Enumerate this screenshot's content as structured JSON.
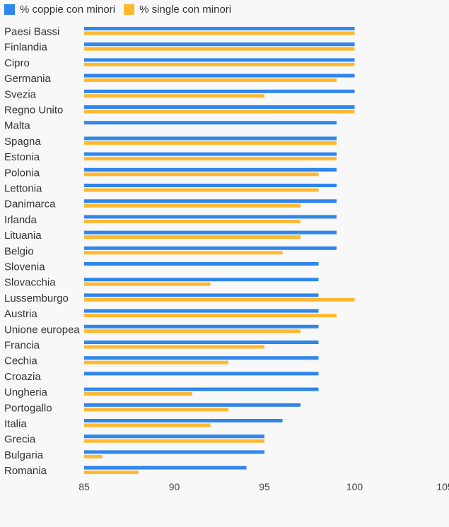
{
  "chart_data": {
    "type": "bar",
    "orientation": "horizontal",
    "categories": [
      "Paesi Bassi",
      "Finlandia",
      "Cipro",
      "Germania",
      "Svezia",
      "Regno Unito",
      "Malta",
      "Spagna",
      "Estonia",
      "Polonia",
      "Lettonia",
      "Danimarca",
      "Irlanda",
      "Lituania",
      "Belgio",
      "Slovenia",
      "Slovacchia",
      "Lussemburgo",
      "Austria",
      "Unione europea",
      "Francia",
      "Cechia",
      "Croazia",
      "Ungheria",
      "Portogallo",
      "Italia",
      "Grecia",
      "Bulgaria",
      "Romania"
    ],
    "series": [
      {
        "name": "% coppie con minori",
        "color": "#2f86eb",
        "values": [
          100,
          100,
          100,
          100,
          100,
          100,
          99,
          99,
          99,
          99,
          99,
          99,
          99,
          99,
          99,
          98,
          98,
          98,
          98,
          98,
          98,
          98,
          98,
          98,
          97,
          96,
          95,
          95,
          94
        ]
      },
      {
        "name": "% single con minori",
        "color": "#ffb830",
        "values": [
          100,
          100,
          100,
          99,
          95,
          100,
          null,
          99,
          99,
          98,
          98,
          97,
          97,
          97,
          96,
          null,
          92,
          100,
          99,
          97,
          95,
          93,
          null,
          91,
          93,
          92,
          95,
          86,
          88
        ]
      }
    ],
    "xlim": [
      85,
      105
    ],
    "xticks": [
      "85",
      "90",
      "95",
      "100",
      "105"
    ],
    "legend_position": "top-left",
    "grid": false
  }
}
